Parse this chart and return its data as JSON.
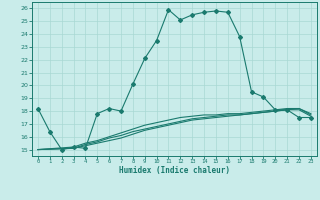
{
  "xlabel": "Humidex (Indice chaleur)",
  "bg_color": "#c9ecea",
  "line_color": "#1a7a6e",
  "grid_color": "#a8d8d4",
  "xlim": [
    -0.5,
    23.5
  ],
  "ylim": [
    14.5,
    26.5
  ],
  "x_ticks": [
    0,
    1,
    2,
    3,
    4,
    5,
    6,
    7,
    8,
    9,
    10,
    11,
    12,
    13,
    14,
    15,
    16,
    17,
    18,
    19,
    20,
    21,
    22,
    23
  ],
  "y_ticks": [
    15,
    16,
    17,
    18,
    19,
    20,
    21,
    22,
    23,
    24,
    25,
    26
  ],
  "main_line_x": [
    0,
    1,
    2,
    3,
    4,
    5,
    6,
    7,
    8,
    9,
    10,
    11,
    12,
    13,
    14,
    15,
    16,
    17,
    18,
    19,
    20,
    21,
    22,
    23
  ],
  "main_line_y": [
    18.2,
    16.4,
    15.0,
    15.2,
    15.1,
    17.8,
    18.2,
    18.0,
    20.1,
    22.1,
    23.5,
    25.9,
    25.1,
    25.5,
    25.7,
    25.8,
    25.7,
    23.8,
    19.5,
    19.1,
    18.1,
    18.1,
    17.5,
    17.5
  ],
  "line2_x": [
    0,
    3,
    4,
    5,
    6,
    7,
    8,
    9,
    10,
    11,
    12,
    13,
    14,
    15,
    16,
    17,
    18,
    19,
    20,
    21,
    22,
    23
  ],
  "line2_y": [
    15.0,
    15.1,
    15.3,
    15.5,
    15.7,
    15.9,
    16.2,
    16.5,
    16.7,
    16.9,
    17.1,
    17.3,
    17.4,
    17.5,
    17.6,
    17.7,
    17.8,
    17.9,
    18.0,
    18.1,
    18.1,
    17.6
  ],
  "line3_x": [
    0,
    3,
    4,
    5,
    6,
    7,
    8,
    9,
    10,
    11,
    12,
    13,
    14,
    15,
    16,
    17,
    18,
    19,
    20,
    21,
    22,
    23
  ],
  "line3_y": [
    15.0,
    15.1,
    15.4,
    15.6,
    15.9,
    16.1,
    16.4,
    16.6,
    16.8,
    17.0,
    17.2,
    17.4,
    17.5,
    17.6,
    17.7,
    17.7,
    17.8,
    17.9,
    18.0,
    18.1,
    18.2,
    17.7
  ],
  "line4_x": [
    0,
    3,
    4,
    5,
    6,
    7,
    8,
    9,
    10,
    11,
    12,
    13,
    14,
    15,
    16,
    17,
    18,
    19,
    20,
    21,
    22,
    23
  ],
  "line4_y": [
    15.0,
    15.2,
    15.5,
    15.7,
    16.0,
    16.3,
    16.6,
    16.9,
    17.1,
    17.3,
    17.5,
    17.6,
    17.7,
    17.7,
    17.8,
    17.8,
    17.9,
    18.0,
    18.1,
    18.2,
    18.2,
    17.8
  ]
}
